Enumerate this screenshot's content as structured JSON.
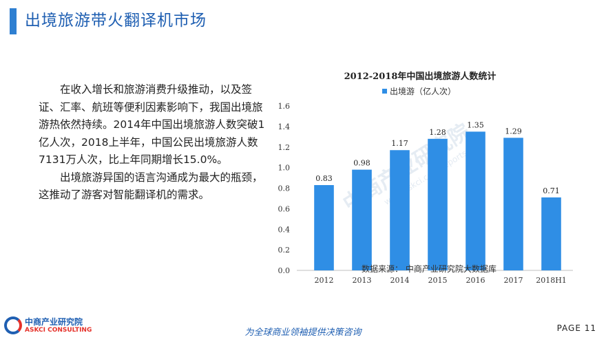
{
  "header": {
    "title": "出境旅游带火翻译机市场"
  },
  "body": {
    "paragraphs": [
      "在收入增长和旅游消费升级推动，以及签证、汇率、航班等便利因素影响下，我国出境旅游热依然持续。2014年中国出境旅游人数突破1亿人次，2018上半年，中国公民出境旅游人数7131万人次，比上年同期增长15.0%。",
      "出境旅游异国的语言沟通成为最大的瓶颈，这推动了游客对智能翻译机的需求。"
    ]
  },
  "chart_data": {
    "type": "bar",
    "title": "2012-2018年中国出境旅游人数统计",
    "categories": [
      "2012",
      "2013",
      "2014",
      "2015",
      "2016",
      "2017",
      "2018H1"
    ],
    "series": [
      {
        "name": "出境游（亿人次）",
        "values": [
          0.83,
          0.98,
          1.17,
          1.28,
          1.35,
          1.29,
          0.71
        ],
        "color": "#2f8ee5"
      }
    ],
    "data_labels": [
      "0.83",
      "0.98",
      "1.17",
      "1.28",
      "1.35",
      "1.29",
      "0.71"
    ],
    "yticks": [
      "0.0",
      "0.2",
      "0.4",
      "0.6",
      "0.8",
      "1.0",
      "1.2",
      "1.4",
      "1.6"
    ],
    "ylim": [
      0,
      1.6
    ],
    "grid": false,
    "legend": "top-center"
  },
  "source": "数据来源： 中商产业研究院大数据库",
  "watermark": {
    "text": "中商产业研究院",
    "url": "www.askci.com/reports/"
  },
  "footer": {
    "logo_cn": "中商产业研究院",
    "logo_en": "ASKCI CONSULTING",
    "slogan": "为全球商业领袖提供决策咨询",
    "page": "PAGE 11"
  }
}
